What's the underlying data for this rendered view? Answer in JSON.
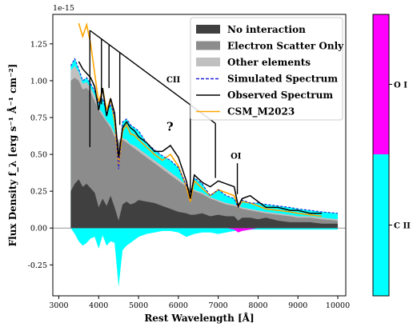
{
  "chart_data": {
    "type": "area",
    "xlabel": "Rest Wavelength [Å]",
    "ylabel": "Flux Density f_λ [erg s⁻¹ Å⁻¹ cm⁻²]",
    "y_offset_text": "1e-15",
    "xlim": [
      2850,
      10200
    ],
    "ylim": [
      -0.46,
      1.45
    ],
    "x_ticks": [
      3000,
      4000,
      5000,
      6000,
      7000,
      8000,
      9000,
      10000
    ],
    "y_ticks": [
      -0.25,
      0.0,
      0.25,
      0.5,
      0.75,
      1.0,
      1.25
    ],
    "legend_position": "upper-right",
    "legend": [
      {
        "label": "No interaction",
        "style": "fill",
        "color": "#404040"
      },
      {
        "label": "Electron Scatter Only",
        "style": "fill",
        "color": "#8c8c8c"
      },
      {
        "label": "Other elements",
        "style": "fill",
        "color": "#c0c0c0"
      },
      {
        "label": "Simulated Spectrum",
        "style": "dashed",
        "color": "#1f1fd6"
      },
      {
        "label": "Observed Spectrum",
        "style": "line",
        "color": "#000000"
      },
      {
        "label": "CSM_M2023",
        "style": "line",
        "color": "#ffa500"
      }
    ],
    "x": [
      3300,
      3400,
      3500,
      3600,
      3700,
      3800,
      3900,
      4000,
      4100,
      4200,
      4300,
      4400,
      4500,
      4600,
      4700,
      4800,
      4900,
      5000,
      5200,
      5400,
      5600,
      5800,
      6000,
      6200,
      6300,
      6400,
      6600,
      6800,
      7000,
      7200,
      7400,
      7500,
      7600,
      7800,
      8000,
      8200,
      8500,
      8800,
      9000,
      9300,
      9600,
      10000
    ],
    "series": [
      {
        "name": "No interaction",
        "values": [
          0.25,
          0.3,
          0.33,
          0.28,
          0.3,
          0.27,
          0.24,
          0.14,
          0.2,
          0.15,
          0.22,
          0.14,
          0.05,
          0.16,
          0.18,
          0.16,
          0.17,
          0.19,
          0.18,
          0.17,
          0.15,
          0.13,
          0.11,
          0.1,
          0.09,
          0.09,
          0.1,
          0.08,
          0.09,
          0.08,
          0.08,
          0.05,
          0.07,
          0.07,
          0.06,
          0.07,
          0.05,
          0.04,
          0.04,
          0.04,
          0.03,
          0.03
        ]
      },
      {
        "name": "Electron Scatter Only",
        "values": [
          1.0,
          1.02,
          1.0,
          0.94,
          0.95,
          0.92,
          0.86,
          0.8,
          0.76,
          0.72,
          0.68,
          0.62,
          0.58,
          0.6,
          0.58,
          0.56,
          0.54,
          0.52,
          0.48,
          0.44,
          0.4,
          0.36,
          0.32,
          0.28,
          0.26,
          0.25,
          0.23,
          0.2,
          0.18,
          0.16,
          0.15,
          0.14,
          0.13,
          0.12,
          0.11,
          0.1,
          0.09,
          0.08,
          0.07,
          0.07,
          0.06,
          0.05
        ]
      },
      {
        "name": "Other elements",
        "values": [
          1.07,
          1.1,
          1.06,
          0.98,
          0.99,
          0.95,
          0.9,
          0.82,
          0.78,
          0.73,
          0.7,
          0.64,
          0.6,
          0.61,
          0.6,
          0.57,
          0.56,
          0.54,
          0.5,
          0.46,
          0.42,
          0.38,
          0.34,
          0.29,
          0.27,
          0.26,
          0.24,
          0.21,
          0.19,
          0.17,
          0.16,
          0.15,
          0.14,
          0.13,
          0.12,
          0.11,
          0.1,
          0.09,
          0.08,
          0.08,
          0.07,
          0.06
        ]
      },
      {
        "name": "Simulated Spectrum",
        "values": [
          1.1,
          1.15,
          1.08,
          1.0,
          1.02,
          0.98,
          0.93,
          0.85,
          0.88,
          0.78,
          0.84,
          0.76,
          0.4,
          0.72,
          0.74,
          0.7,
          0.68,
          0.66,
          0.58,
          0.53,
          0.49,
          0.46,
          0.41,
          0.29,
          0.22,
          0.34,
          0.3,
          0.22,
          0.26,
          0.22,
          0.2,
          0.14,
          0.19,
          0.17,
          0.17,
          0.16,
          0.15,
          0.14,
          0.13,
          0.12,
          0.11,
          0.1
        ]
      },
      {
        "name": "Observed Spectrum",
        "values": [
          null,
          null,
          1.13,
          1.08,
          1.05,
          1.02,
          0.96,
          0.8,
          0.95,
          0.76,
          0.88,
          0.78,
          0.48,
          0.68,
          0.72,
          0.68,
          0.66,
          0.62,
          0.58,
          0.52,
          0.52,
          0.56,
          0.48,
          0.32,
          0.2,
          0.36,
          0.31,
          0.28,
          0.32,
          0.3,
          0.28,
          0.15,
          0.2,
          0.22,
          0.18,
          0.14,
          0.14,
          0.12,
          0.12,
          0.1,
          0.1,
          null
        ]
      },
      {
        "name": "CSM_M2023",
        "values": [
          null,
          null,
          1.39,
          1.3,
          1.38,
          1.25,
          1.05,
          0.85,
          0.95,
          0.8,
          0.88,
          0.72,
          0.42,
          0.66,
          0.7,
          0.64,
          0.63,
          0.6,
          0.55,
          0.5,
          0.46,
          0.5,
          0.42,
          0.28,
          0.18,
          0.32,
          0.27,
          0.22,
          0.26,
          0.24,
          0.22,
          0.14,
          0.18,
          0.17,
          0.15,
          0.13,
          0.12,
          0.11,
          0.1,
          0.09,
          0.08,
          null
        ]
      },
      {
        "name": "C II",
        "values": [
          0,
          -0.04,
          -0.09,
          -0.12,
          -0.1,
          -0.07,
          -0.06,
          -0.14,
          -0.05,
          -0.12,
          -0.09,
          -0.1,
          -0.4,
          -0.15,
          -0.12,
          -0.1,
          -0.08,
          -0.06,
          -0.04,
          -0.03,
          -0.02,
          -0.02,
          -0.03,
          -0.06,
          -0.05,
          -0.04,
          -0.03,
          -0.03,
          -0.04,
          -0.03,
          -0.02,
          -0.02,
          -0.02,
          -0.01,
          -0.01,
          -0.01,
          -0.01,
          -0.01,
          -0.01,
          -0.01,
          -0.01,
          -0.01
        ]
      },
      {
        "name": "O I",
        "values": [
          0,
          0,
          0,
          0,
          0,
          0,
          0,
          0,
          0,
          0,
          0,
          0,
          0,
          0,
          0,
          0,
          0,
          0,
          0,
          0,
          0,
          0,
          0,
          0,
          0,
          0,
          0,
          0,
          0,
          0,
          -0.01,
          -0.03,
          -0.02,
          -0.01,
          0,
          0,
          0,
          0,
          0,
          0,
          0,
          0
        ]
      }
    ],
    "annotations": {
      "cii_label": "CII",
      "oi_label": "OI",
      "question": "?",
      "cii_apex_x": 3780,
      "cii_lines_x": [
        4070,
        4260,
        4530,
        6300,
        6930
      ],
      "oi_line_x": 7480
    },
    "colorbar": {
      "segments": [
        {
          "label": "C II",
          "color": "#00ffff"
        },
        {
          "label": "O I",
          "color": "#ff00ff"
        }
      ]
    }
  }
}
